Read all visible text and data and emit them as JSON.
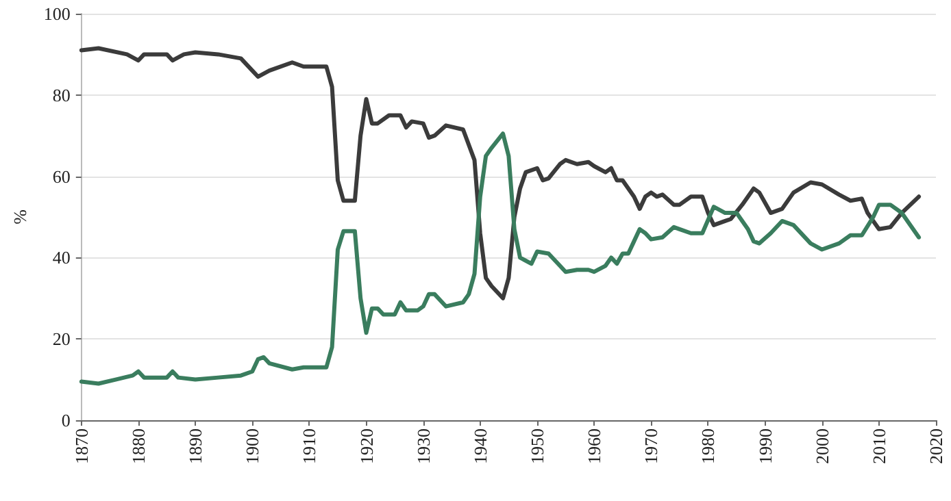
{
  "chart_data": {
    "type": "line",
    "ylabel": "%",
    "xlim": [
      1870,
      2020
    ],
    "xticks": [
      1870,
      1880,
      1890,
      1900,
      1910,
      1920,
      1930,
      1940,
      1950,
      1960,
      1970,
      1980,
      1990,
      2000,
      2010,
      2020
    ],
    "ylim": [
      0,
      100
    ],
    "yticks": [
      0,
      20,
      40,
      60,
      80,
      100
    ],
    "grid": "y",
    "marker": "none",
    "line_style": "solid",
    "series": [
      {
        "color": "#3b3b3b",
        "x": [
          1870,
          1873,
          1878,
          1880,
          1881,
          1885,
          1886,
          1888,
          1890,
          1894,
          1898,
          1900,
          1901,
          1903,
          1907,
          1909,
          1913,
          1914,
          1915,
          1916,
          1918,
          1919,
          1920,
          1921,
          1922,
          1924,
          1926,
          1927,
          1928,
          1930,
          1931,
          1932,
          1934,
          1937,
          1939,
          1940,
          1941,
          1942,
          1944,
          1945,
          1946,
          1947,
          1948,
          1950,
          1951,
          1952,
          1954,
          1955,
          1957,
          1959,
          1960,
          1962,
          1963,
          1964,
          1965,
          1967,
          1968,
          1969,
          1970,
          1971,
          1972,
          1974,
          1975,
          1977,
          1979,
          1980,
          1981,
          1983,
          1984,
          1986,
          1988,
          1989,
          1991,
          1993,
          1995,
          1998,
          2000,
          2003,
          2005,
          2007,
          2008,
          2010,
          2012,
          2014,
          2017
        ],
        "values": [
          91,
          91.5,
          90,
          88.5,
          90,
          90,
          88.5,
          90,
          90.5,
          90,
          89,
          86,
          84.5,
          86,
          88,
          87,
          87,
          82,
          59,
          54,
          54,
          70,
          79,
          73,
          73,
          75,
          75,
          72,
          73.5,
          73,
          69.5,
          70,
          72.5,
          71.5,
          64,
          46,
          35,
          33,
          30,
          35,
          50,
          57,
          61,
          62,
          59,
          59.5,
          63,
          64,
          63,
          63.5,
          62.5,
          61,
          62,
          59,
          59,
          55,
          52,
          55,
          56,
          55,
          55.5,
          53,
          53,
          55,
          55,
          51,
          48,
          49,
          49.5,
          53,
          57,
          56,
          51,
          52,
          56,
          58.5,
          58,
          55.5,
          54,
          54.5,
          51,
          47,
          47.5,
          51,
          55
        ]
      },
      {
        "color": "#3a7d5e",
        "x": [
          1870,
          1873,
          1876,
          1879,
          1880,
          1881,
          1885,
          1886,
          1887,
          1890,
          1894,
          1898,
          1900,
          1901,
          1902,
          1903,
          1907,
          1909,
          1913,
          1914,
          1915,
          1916,
          1918,
          1919,
          1920,
          1921,
          1922,
          1923,
          1925,
          1926,
          1927,
          1929,
          1930,
          1931,
          1932,
          1934,
          1937,
          1938,
          1939,
          1940,
          1941,
          1942,
          1944,
          1945,
          1946,
          1947,
          1949,
          1950,
          1952,
          1954,
          1955,
          1957,
          1959,
          1960,
          1962,
          1963,
          1964,
          1965,
          1966,
          1967,
          1968,
          1969,
          1970,
          1972,
          1974,
          1975,
          1977,
          1979,
          1981,
          1983,
          1985,
          1987,
          1988,
          1989,
          1991,
          1993,
          1995,
          1998,
          2000,
          2003,
          2005,
          2007,
          2009,
          2010,
          2012,
          2014,
          2017
        ],
        "values": [
          9.5,
          9,
          10,
          11,
          12,
          10.5,
          10.5,
          12,
          10.5,
          10,
          10.5,
          11,
          12,
          15,
          15.5,
          14,
          12.5,
          13,
          13,
          18,
          42,
          46.5,
          46.5,
          30,
          21.5,
          27.5,
          27.5,
          26,
          26,
          29,
          27,
          27,
          28,
          31,
          31,
          28,
          29,
          31,
          36,
          55,
          65,
          67,
          70.5,
          65,
          47,
          40,
          38.5,
          41.5,
          41,
          38,
          36.5,
          37,
          37,
          36.5,
          38,
          40,
          38.5,
          41,
          41,
          44,
          47,
          46,
          44.5,
          45,
          47.5,
          47,
          46,
          46,
          52.5,
          51,
          51,
          47,
          44,
          43.5,
          46,
          49,
          48,
          43.5,
          42,
          43.5,
          45.5,
          45.5,
          50,
          53,
          53,
          51,
          45
        ]
      }
    ]
  }
}
